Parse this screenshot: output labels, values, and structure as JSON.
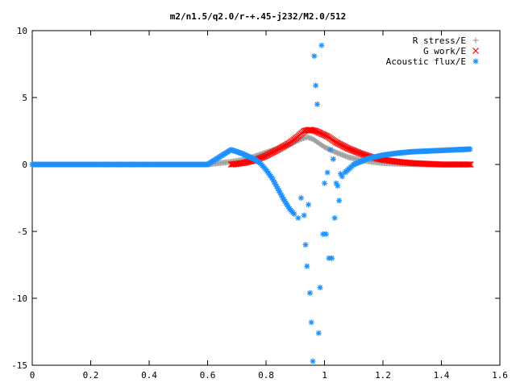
{
  "chart_data": {
    "type": "scatter",
    "title": "m2/n1.5/q2.0/r-+.45-j232/M2.0/512",
    "xlabel": "",
    "ylabel": "",
    "xlim": [
      0,
      1.6
    ],
    "ylim": [
      -15,
      10
    ],
    "xticks": [
      "0",
      "0.2",
      "0.4",
      "0.6",
      "0.8",
      "1",
      "1.2",
      "1.4",
      "1.6"
    ],
    "yticks": [
      "10",
      "5",
      "0",
      "-5",
      "-10",
      "-15"
    ],
    "legend_position": "top-right",
    "grid": false,
    "series": [
      {
        "name": "R stress/E",
        "marker": "plus",
        "color": "#a0a0a0",
        "x": [
          0.0,
          0.1,
          0.2,
          0.3,
          0.4,
          0.5,
          0.6,
          0.68,
          0.72,
          0.76,
          0.8,
          0.84,
          0.88,
          0.92,
          0.94,
          0.96,
          0.98,
          1.0,
          1.04,
          1.08,
          1.12,
          1.16,
          1.2,
          1.25,
          1.3,
          1.35,
          1.4,
          1.45,
          1.5
        ],
        "y": [
          0.0,
          0.0,
          0.0,
          0.0,
          0.0,
          0.0,
          0.0,
          0.2,
          0.35,
          0.6,
          0.9,
          1.2,
          1.5,
          1.9,
          2.05,
          1.9,
          1.6,
          1.3,
          0.9,
          0.55,
          0.35,
          0.2,
          0.1,
          0.05,
          0.02,
          0.0,
          0.0,
          0.0,
          0.0
        ]
      },
      {
        "name": "G work/E",
        "marker": "cross",
        "color": "#ff0000",
        "x": [
          0.68,
          0.72,
          0.76,
          0.8,
          0.84,
          0.88,
          0.91,
          0.93,
          0.95,
          0.97,
          0.99,
          1.01,
          1.04,
          1.08,
          1.12,
          1.16,
          1.2,
          1.25,
          1.3,
          1.35,
          1.4,
          1.45,
          1.5
        ],
        "y": [
          0.0,
          0.1,
          0.3,
          0.65,
          1.1,
          1.6,
          2.1,
          2.5,
          2.6,
          2.5,
          2.3,
          2.1,
          1.65,
          1.2,
          0.85,
          0.55,
          0.35,
          0.2,
          0.1,
          0.05,
          0.0,
          0.0,
          0.0
        ]
      },
      {
        "name": "Acoustic flux/E",
        "marker": "star",
        "color": "#1e90ff",
        "x": [
          0.0,
          0.1,
          0.2,
          0.3,
          0.4,
          0.5,
          0.6,
          0.68,
          0.7,
          0.72,
          0.74,
          0.76,
          0.78,
          0.8,
          0.82,
          0.84,
          0.86,
          0.88,
          0.9,
          0.91,
          0.92,
          0.93,
          0.935,
          0.94,
          0.945,
          0.95,
          0.955,
          0.96,
          0.965,
          0.97,
          0.975,
          0.98,
          0.985,
          0.99,
          0.995,
          1.0,
          1.005,
          1.01,
          1.015,
          1.02,
          1.025,
          1.03,
          1.035,
          1.04,
          1.045,
          1.05,
          1.055,
          1.06,
          1.07,
          1.1,
          1.15,
          1.2,
          1.25,
          1.3,
          1.35,
          1.4,
          1.45,
          1.5
        ],
        "y": [
          0.0,
          0.0,
          0.0,
          0.0,
          0.0,
          0.0,
          0.0,
          1.1,
          0.95,
          0.8,
          0.6,
          0.4,
          0.1,
          -0.4,
          -1.0,
          -1.8,
          -2.6,
          -3.3,
          -3.8,
          -4.0,
          -2.5,
          -3.8,
          -6.0,
          -7.6,
          -3.0,
          -9.6,
          -11.8,
          -14.7,
          8.1,
          5.9,
          4.5,
          -12.6,
          -9.2,
          8.9,
          -5.2,
          -1.4,
          -5.2,
          -0.6,
          -7.0,
          1.1,
          -7.0,
          0.4,
          -4.0,
          -1.4,
          -1.6,
          -2.7,
          -0.7,
          -0.9,
          -0.6,
          0.0,
          0.45,
          0.7,
          0.85,
          0.95,
          1.0,
          1.05,
          1.1,
          1.15
        ]
      }
    ]
  }
}
